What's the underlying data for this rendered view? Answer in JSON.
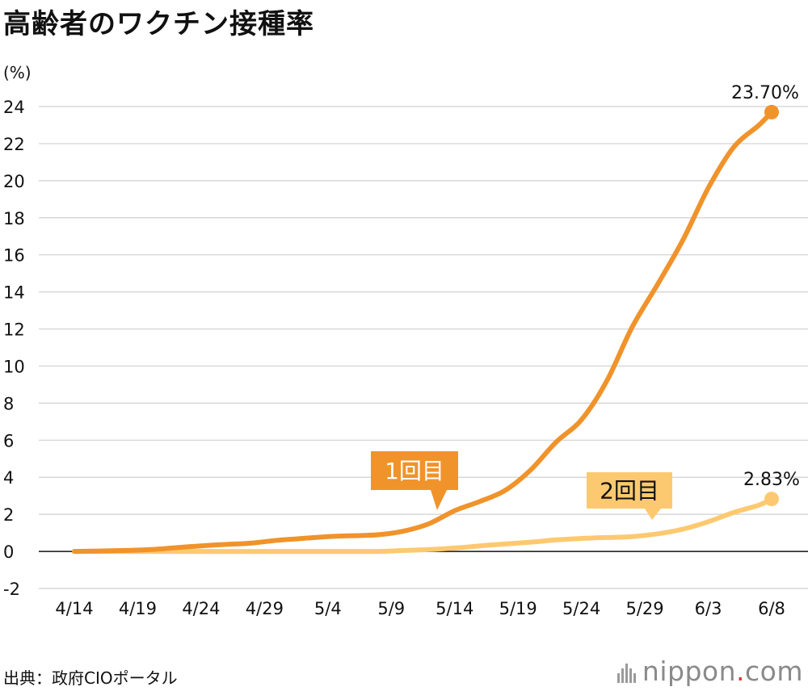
{
  "title": "高齢者のワクチン接種率",
  "unit": "(%)",
  "source": "出典：政府CIOポータル",
  "brand": {
    "name": "nippon",
    "dot": ".",
    "tld": "com"
  },
  "colors": {
    "first_dose": "#f0932b",
    "second_dose": "#fdc970",
    "grid": "#d0d0d0",
    "zero_line": "#111111"
  },
  "chart_data": {
    "type": "line",
    "title": "高齢者のワクチン接種率",
    "ylabel": "(%)",
    "xlabel": "",
    "ylim": [
      -2,
      24
    ],
    "yticks": [
      "-2",
      "0",
      "2",
      "4",
      "6",
      "8",
      "10",
      "12",
      "14",
      "16",
      "18",
      "20",
      "22",
      "24"
    ],
    "xticks": [
      "4/14",
      "4/19",
      "4/24",
      "4/29",
      "5/4",
      "5/9",
      "5/14",
      "5/19",
      "5/24",
      "5/29",
      "6/3",
      "6/8"
    ],
    "x": [
      "4/14",
      "4/16",
      "4/18",
      "4/20",
      "4/22",
      "4/24",
      "4/26",
      "4/28",
      "4/30",
      "5/2",
      "5/4",
      "5/6",
      "5/8",
      "5/10",
      "5/12",
      "5/14",
      "5/16",
      "5/18",
      "5/20",
      "5/22",
      "5/24",
      "5/26",
      "5/28",
      "5/30",
      "6/1",
      "6/3",
      "6/5",
      "6/7",
      "6/8"
    ],
    "series": [
      {
        "name": "1回目",
        "values": [
          0,
          0.02,
          0.05,
          0.1,
          0.2,
          0.3,
          0.38,
          0.45,
          0.6,
          0.7,
          0.8,
          0.85,
          0.9,
          1.1,
          1.5,
          2.2,
          2.7,
          3.3,
          4.4,
          5.9,
          7.1,
          9.2,
          12.1,
          14.4,
          16.8,
          19.6,
          21.8,
          23.0,
          23.7
        ],
        "end_label": "23.70%"
      },
      {
        "name": "2回目",
        "values": [
          0,
          0,
          0,
          0,
          0,
          0,
          0,
          0,
          0,
          0,
          0,
          0,
          0,
          0.05,
          0.1,
          0.18,
          0.3,
          0.4,
          0.5,
          0.62,
          0.7,
          0.75,
          0.8,
          0.95,
          1.2,
          1.6,
          2.1,
          2.5,
          2.83
        ],
        "end_label": "2.83%"
      }
    ]
  }
}
